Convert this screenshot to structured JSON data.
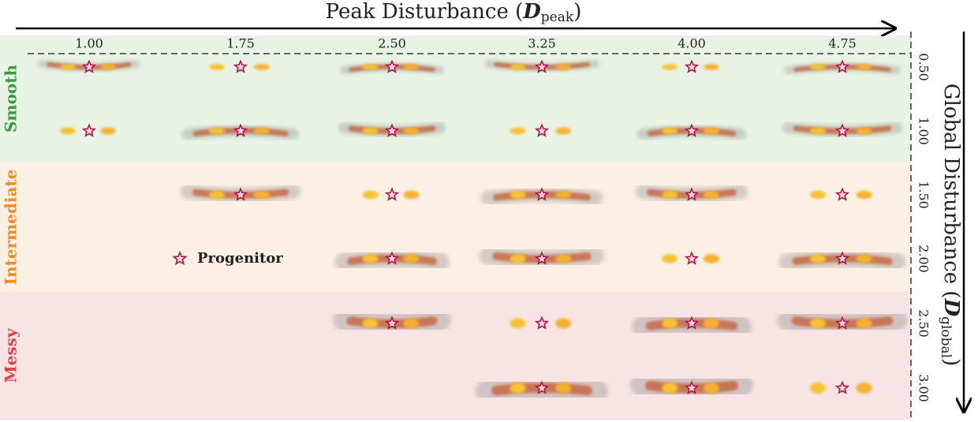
{
  "x_axis": {
    "title": "Peak Disturbance (",
    "symbol": "D",
    "subscript": "peak",
    "close": ")",
    "ticks": [
      "1.00",
      "1.75",
      "2.50",
      "3.25",
      "4.00",
      "4.75"
    ]
  },
  "y_axis": {
    "title": "Global Disturbance (",
    "symbol": "D",
    "subscript": "global",
    "close": ")",
    "ticks": [
      "0.50",
      "1.00",
      "1.50",
      "2.00",
      "2.50",
      "3.00"
    ]
  },
  "regions": [
    "Smooth",
    "Intermediate",
    "Messy"
  ],
  "legend": "Progenitor"
}
